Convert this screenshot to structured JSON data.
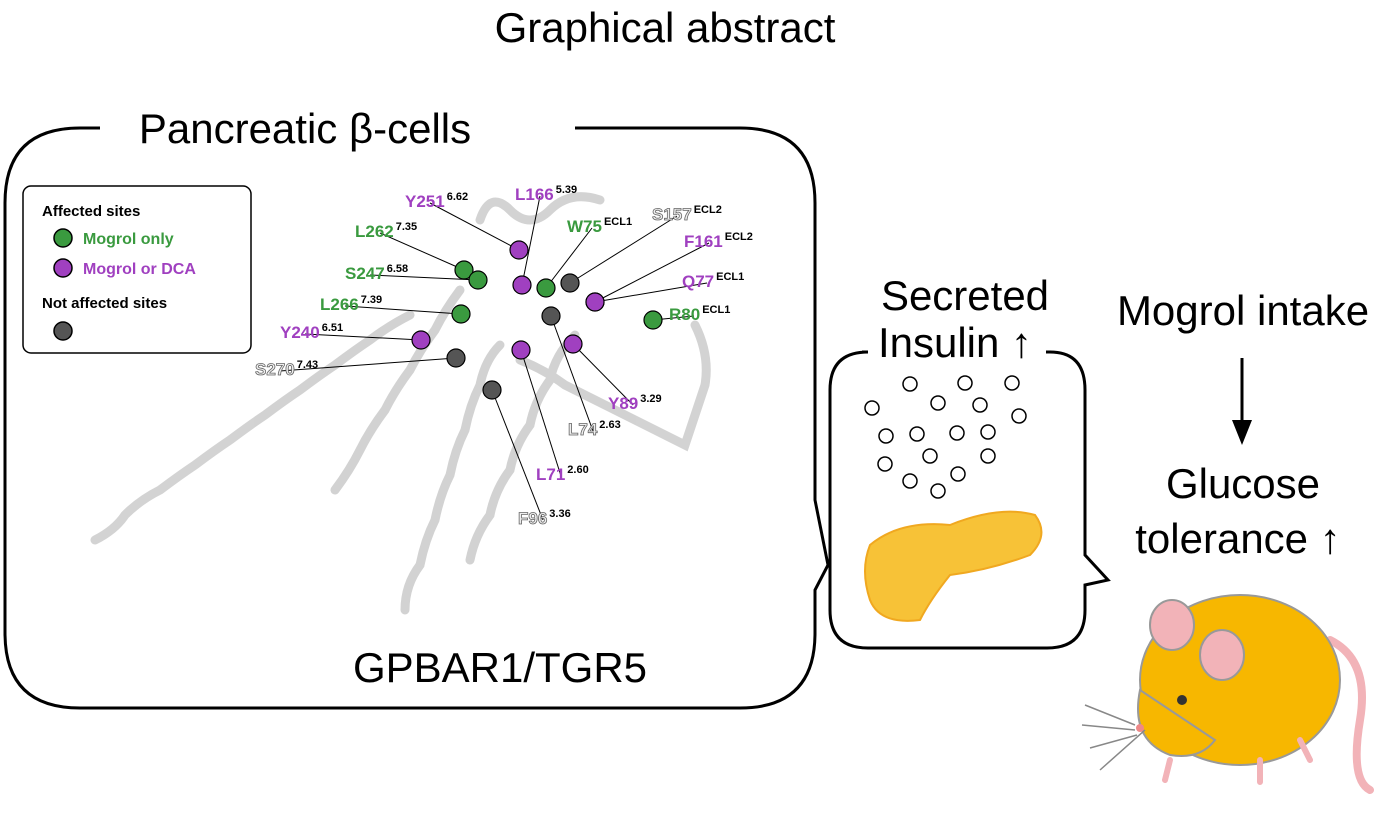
{
  "title": "Graphical abstract",
  "left_panel": {
    "title": "Pancreatic β-cells",
    "protein": "GPBAR1/TGR5",
    "legend": {
      "affected_heading": "Affected sites",
      "items": [
        {
          "label": "Mogrol only",
          "color": "#3a9a3f"
        },
        {
          "label": "Mogrol or DCA",
          "color": "#a040c0"
        }
      ],
      "not_affected_heading": "Not affected sites",
      "not_affected_color": "#555555"
    },
    "residues": [
      {
        "label": "Y251",
        "sup": "6.62",
        "color": "#a040c0"
      },
      {
        "label": "L166",
        "sup": "5.39",
        "color": "#a040c0"
      },
      {
        "label": "S157",
        "sup": "ECL2",
        "color": "#555555"
      },
      {
        "label": "W75",
        "sup": "ECL1",
        "color": "#3a9a3f"
      },
      {
        "label": "F161",
        "sup": "ECL2",
        "color": "#a040c0"
      },
      {
        "label": "L262",
        "sup": "7.35",
        "color": "#3a9a3f"
      },
      {
        "label": "S247",
        "sup": "6.58",
        "color": "#3a9a3f"
      },
      {
        "label": "Q77",
        "sup": "ECL1",
        "color": "#a040c0"
      },
      {
        "label": "R80",
        "sup": "ECL1",
        "color": "#3a9a3f"
      },
      {
        "label": "L266",
        "sup": "7.39",
        "color": "#3a9a3f"
      },
      {
        "label": "Y240",
        "sup": "6.51",
        "color": "#a040c0"
      },
      {
        "label": "S270",
        "sup": "7.43",
        "color": "#555555"
      },
      {
        "label": "Y89",
        "sup": "3.29",
        "color": "#a040c0"
      },
      {
        "label": "L74",
        "sup": "2.63",
        "color": "#555555"
      },
      {
        "label": "L71",
        "sup": "2.60",
        "color": "#a040c0"
      },
      {
        "label": "F96",
        "sup": "3.36",
        "color": "#555555"
      }
    ]
  },
  "middle_panel": {
    "line1": "Secreted",
    "line2": "Insulin ↑"
  },
  "right_panel": {
    "intake": "Mogrol intake",
    "line1": "Glucose",
    "line2": "tolerance ↑"
  }
}
